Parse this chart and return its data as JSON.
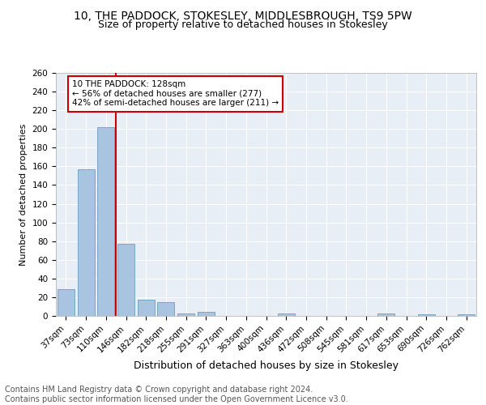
{
  "title": "10, THE PADDOCK, STOKESLEY, MIDDLESBROUGH, TS9 5PW",
  "subtitle": "Size of property relative to detached houses in Stokesley",
  "xlabel": "Distribution of detached houses by size in Stokesley",
  "ylabel": "Number of detached properties",
  "categories": [
    "37sqm",
    "73sqm",
    "110sqm",
    "146sqm",
    "182sqm",
    "218sqm",
    "255sqm",
    "291sqm",
    "327sqm",
    "363sqm",
    "400sqm",
    "436sqm",
    "472sqm",
    "508sqm",
    "545sqm",
    "581sqm",
    "617sqm",
    "653sqm",
    "690sqm",
    "726sqm",
    "762sqm"
  ],
  "values": [
    29,
    157,
    202,
    77,
    17,
    15,
    3,
    4,
    0,
    0,
    0,
    3,
    0,
    0,
    0,
    0,
    3,
    0,
    2,
    0,
    2
  ],
  "bar_color": "#a8c4e0",
  "bar_edge_color": "#6a9ec0",
  "marker_line_color": "#cc0000",
  "annotation_text": "10 THE PADDOCK: 128sqm\n← 56% of detached houses are smaller (277)\n42% of semi-detached houses are larger (211) →",
  "annotation_box_color": "#ffffff",
  "annotation_box_edge": "#cc0000",
  "ylim": [
    0,
    260
  ],
  "yticks": [
    0,
    20,
    40,
    60,
    80,
    100,
    120,
    140,
    160,
    180,
    200,
    220,
    240,
    260
  ],
  "background_color": "#e8eef5",
  "grid_color": "#ffffff",
  "title_fontsize": 10,
  "subtitle_fontsize": 9,
  "ylabel_fontsize": 8,
  "xlabel_fontsize": 9,
  "tick_fontsize": 7.5,
  "annotation_fontsize": 7.5,
  "footer_text": "Contains HM Land Registry data © Crown copyright and database right 2024.\nContains public sector information licensed under the Open Government Licence v3.0.",
  "footer_fontsize": 7
}
